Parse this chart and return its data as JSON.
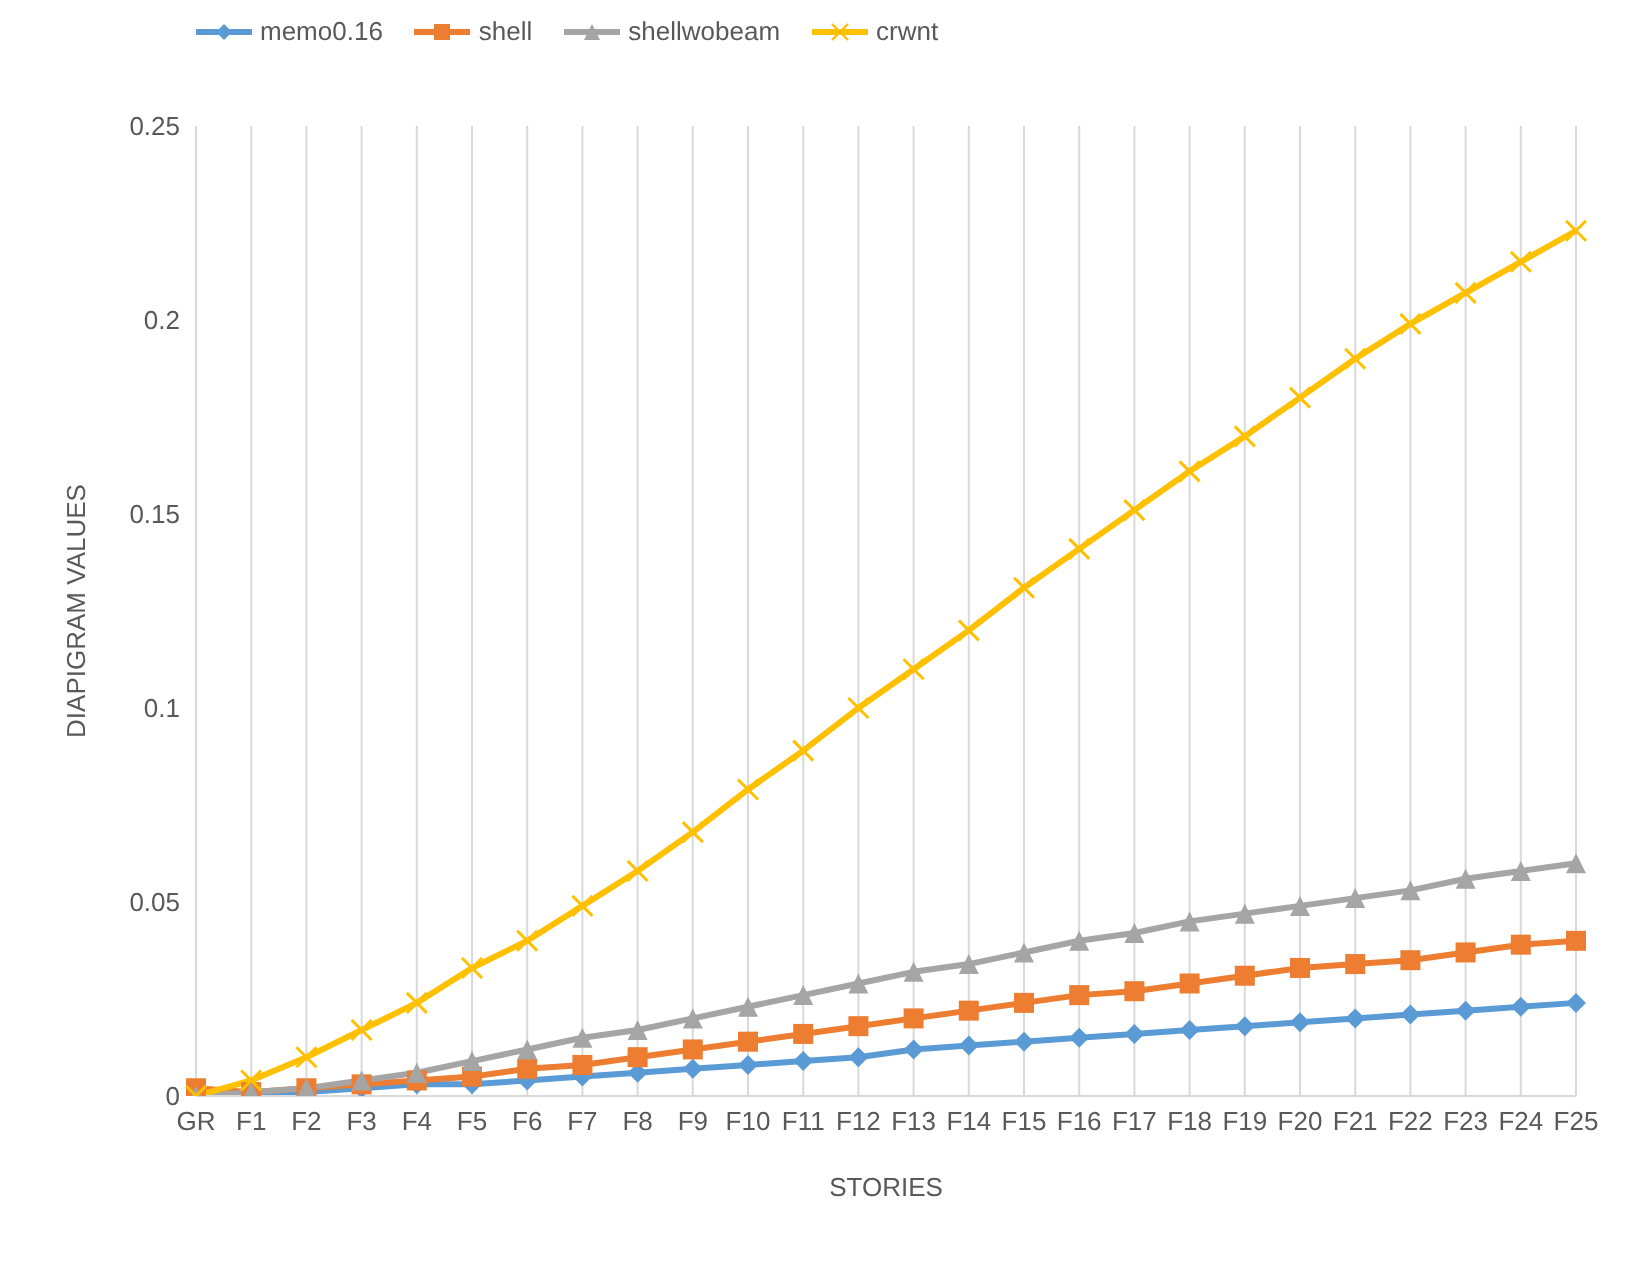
{
  "chart_data": {
    "type": "line",
    "xlabel": "STORIES",
    "ylabel": "DIAPIGRAM VALUES",
    "categories": [
      "GR",
      "F1",
      "F2",
      "F3",
      "F4",
      "F5",
      "F6",
      "F7",
      "F8",
      "F9",
      "F10",
      "F11",
      "F12",
      "F13",
      "F14",
      "F15",
      "F16",
      "F17",
      "F18",
      "F19",
      "F20",
      "F21",
      "F22",
      "F23",
      "F24",
      "F25"
    ],
    "series": [
      {
        "name": "memo0.16",
        "color": "#5b9bd5",
        "marker": "diamond",
        "values": [
          0,
          0,
          0.001,
          0.002,
          0.003,
          0.003,
          0.004,
          0.005,
          0.006,
          0.007,
          0.008,
          0.009,
          0.01,
          0.012,
          0.013,
          0.014,
          0.015,
          0.016,
          0.017,
          0.018,
          0.019,
          0.02,
          0.021,
          0.022,
          0.023,
          0.024
        ]
      },
      {
        "name": "shell",
        "color": "#ed7d31",
        "marker": "square",
        "values": [
          0.002,
          0.001,
          0.002,
          0.003,
          0.004,
          0.005,
          0.007,
          0.008,
          0.01,
          0.012,
          0.014,
          0.016,
          0.018,
          0.02,
          0.022,
          0.024,
          0.026,
          0.027,
          0.029,
          0.031,
          0.033,
          0.034,
          0.035,
          0.037,
          0.039,
          0.04
        ]
      },
      {
        "name": "shellwobeam",
        "color": "#a5a5a5",
        "marker": "triangle",
        "values": [
          0,
          0.001,
          0.002,
          0.004,
          0.006,
          0.009,
          0.012,
          0.015,
          0.017,
          0.02,
          0.023,
          0.026,
          0.029,
          0.032,
          0.034,
          0.037,
          0.04,
          0.042,
          0.045,
          0.047,
          0.049,
          0.051,
          0.053,
          0.056,
          0.058,
          0.06
        ]
      },
      {
        "name": "crwnt",
        "color": "#ffc000",
        "marker": "cross",
        "values": [
          0,
          0.004,
          0.01,
          0.017,
          0.024,
          0.033,
          0.04,
          0.049,
          0.058,
          0.068,
          0.079,
          0.089,
          0.1,
          0.11,
          0.12,
          0.131,
          0.141,
          0.151,
          0.161,
          0.17,
          0.18,
          0.19,
          0.199,
          0.207,
          0.215,
          0.223
        ]
      }
    ],
    "ylim": [
      0,
      0.25
    ],
    "yticks": [
      0,
      0.05,
      0.1,
      0.15,
      0.2,
      0.25
    ],
    "grid": "x",
    "legend": "top left"
  }
}
